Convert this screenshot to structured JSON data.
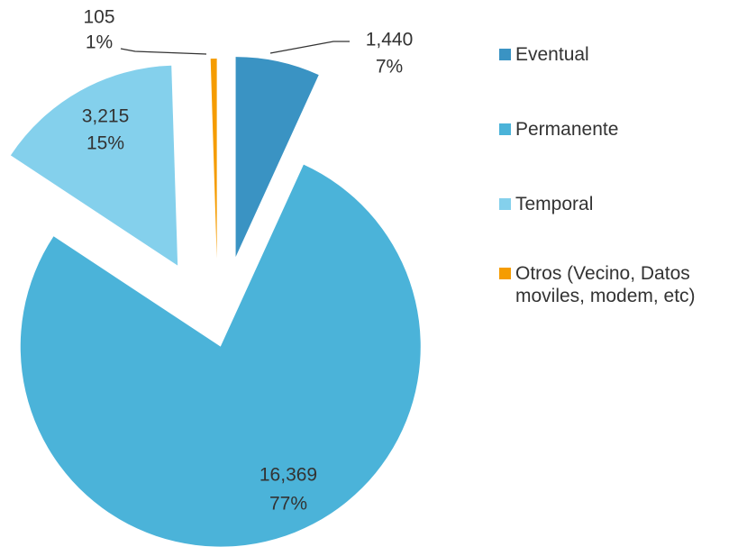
{
  "chart_data": {
    "type": "pie",
    "categories": [
      "Eventual",
      "Permanente",
      "Temporal",
      "Otros (Vecino, Datos moviles, modem, etc)"
    ],
    "values": [
      1440,
      16369,
      3215,
      105
    ],
    "value_labels": [
      "1,440",
      "16,369",
      "3,215",
      "105"
    ],
    "percent_labels": [
      "7%",
      "77%",
      "15%",
      "1%"
    ],
    "colors": [
      "#3a93c3",
      "#4bb3d9",
      "#84d0ec",
      "#f59c00"
    ],
    "legend": "right"
  }
}
